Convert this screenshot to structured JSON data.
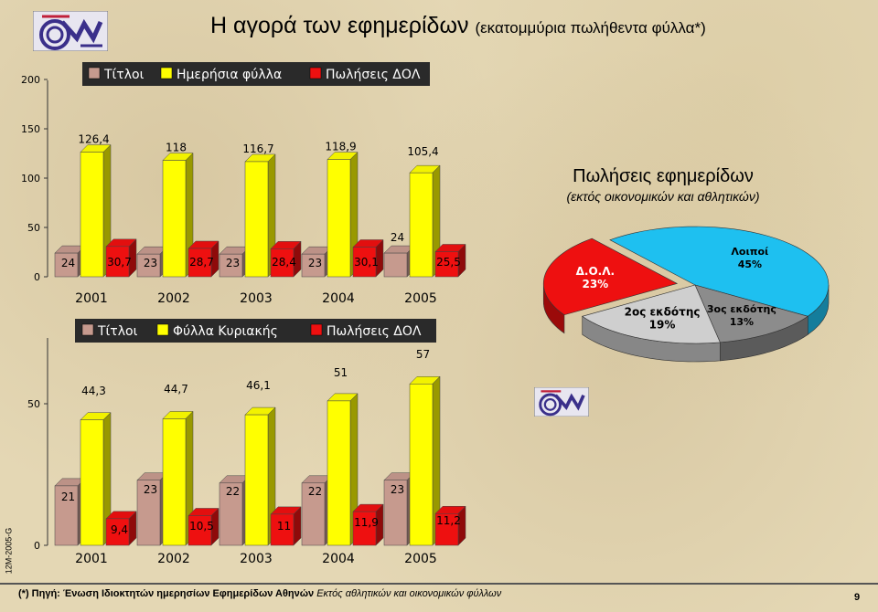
{
  "title": {
    "main": "Η αγορά των εφημερίδων",
    "sub": "(εκατομμύρια πωλήθεντα φύλλα*)"
  },
  "chart_data": [
    {
      "type": "bar",
      "categories": [
        "2001",
        "2002",
        "2003",
        "2004",
        "2005"
      ],
      "series": [
        {
          "name": "Τίτλοι",
          "values": [
            24,
            23,
            23,
            23,
            24
          ]
        },
        {
          "name": "Ημερήσια φύλλα",
          "values": [
            126.4,
            118,
            116.7,
            118.9,
            105.4
          ]
        },
        {
          "name": "Πωλήσεις ΔΟΛ",
          "values": [
            30.7,
            28.7,
            28.4,
            30.1,
            25.5
          ]
        }
      ],
      "value_labels": [
        [
          "24",
          "23",
          "23",
          "23",
          "24"
        ],
        [
          "126,4",
          "118",
          "116,7",
          "118,9",
          "105,4"
        ],
        [
          "30,7",
          "28,7",
          "28,4",
          "30,1",
          "25,5"
        ]
      ],
      "yticks": [
        "0",
        "50",
        "100",
        "150",
        "200"
      ],
      "legend_position": "top"
    },
    {
      "type": "bar",
      "categories": [
        "2001",
        "2002",
        "2003",
        "2004",
        "2005"
      ],
      "series": [
        {
          "name": "Τίτλοι",
          "values": [
            21,
            23,
            22,
            22,
            23
          ]
        },
        {
          "name": "Φύλλα Κυριακής",
          "values": [
            44.3,
            44.7,
            46.1,
            51,
            57
          ]
        },
        {
          "name": "Πωλήσεις ΔΟΛ",
          "values": [
            9.4,
            10.5,
            11,
            11.9,
            11.2
          ]
        }
      ],
      "value_labels": [
        [
          "21",
          "23",
          "22",
          "22",
          "23"
        ],
        [
          "44,3",
          "44,7",
          "46,1",
          "51",
          "57"
        ],
        [
          "9,4",
          "10,5",
          "11",
          "11,9",
          "11,2"
        ]
      ],
      "yticks": [
        "0",
        "50"
      ],
      "legend_position": "top"
    },
    {
      "type": "pie",
      "title": "Πωλήσεις εφημερίδων",
      "subtitle": "(εκτός οικονομικών και αθλητικών)",
      "slices": [
        {
          "label": "Λοιποί",
          "value": 45,
          "pct_label": "45%",
          "color": "#1ec0f0"
        },
        {
          "label": "3ος εκδότης",
          "value": 13,
          "pct_label": "13%",
          "color": "#8c8c8c"
        },
        {
          "label": "2ος εκδότης",
          "value": 19,
          "pct_label": "19%",
          "color": "#cfcfcf"
        },
        {
          "label": "Δ.Ο.Λ.",
          "value": 23,
          "pct_label": "23%",
          "color": "#ee1010"
        }
      ]
    }
  ],
  "colors": {
    "titloi": "#c69a8e",
    "fylla": "#ffff00",
    "dol": "#ee1010"
  },
  "side_code": "12M-2005-G",
  "footer": {
    "source_bold": "(*) Πηγή: Ένωση Ιδιοκτητών ημερησίων Εφημερίδων Αθηνών",
    "source_italic": "Εκτός αθλητικών και οικονομικών φύλλων"
  },
  "page_number": "9"
}
